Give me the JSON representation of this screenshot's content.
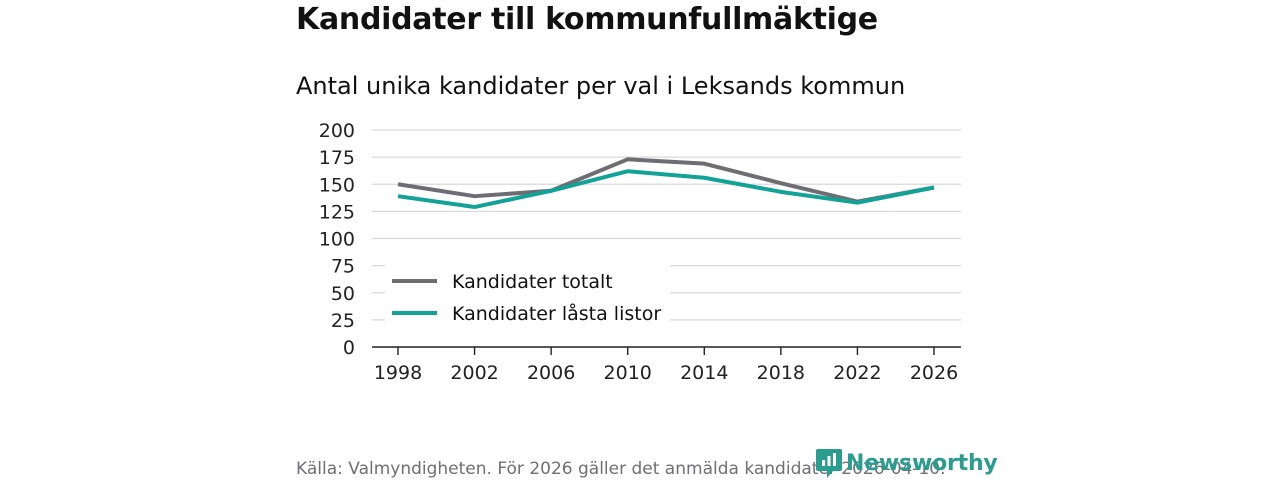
{
  "title": "Kandidater till kommunfullmäktige",
  "subtitle": "Antal unika kandidater per val i Leksands kommun",
  "source": "Källa: Valmyndigheten. För 2026 gäller det anmälda kandidater 2026-04-10.",
  "brand": "Newsworthy",
  "colors": {
    "total": "#6e6d73",
    "locked": "#13a396",
    "grid": "#d9d9d9",
    "axis": "#222222",
    "brand": "#2a9d8f"
  },
  "chart_data": {
    "type": "line",
    "title": "Kandidater till kommunfullmäktige",
    "subtitle": "Antal unika kandidater per val i Leksands kommun",
    "xlabel": "",
    "ylabel": "",
    "x": [
      "1998",
      "2002",
      "2006",
      "2010",
      "2014",
      "2018",
      "2022",
      "2026"
    ],
    "ylim": [
      0,
      200
    ],
    "yticks": [
      "0",
      "25",
      "50",
      "75",
      "100",
      "125",
      "150",
      "175",
      "200"
    ],
    "grid": true,
    "legend_position": "bottom-left",
    "series": [
      {
        "name": "Kandidater totalt",
        "color": "#6e6d73",
        "values": [
          150,
          139,
          144,
          173,
          169,
          151,
          134,
          147
        ]
      },
      {
        "name": "Kandidater låsta listor",
        "color": "#13a396",
        "values": [
          139,
          129,
          144,
          162,
          156,
          143,
          133,
          147
        ]
      }
    ]
  }
}
